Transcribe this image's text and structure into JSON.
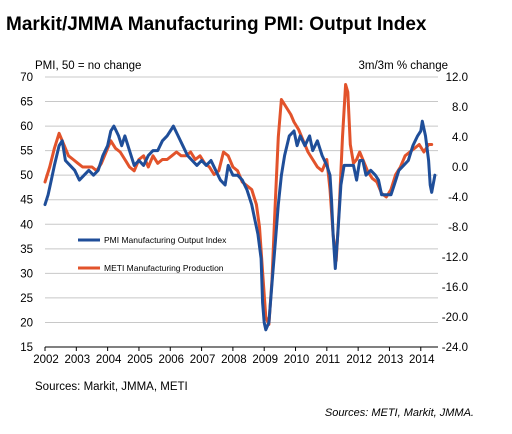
{
  "header": {
    "title": "Markit/JMMA Manufacturing PMI: Output Index",
    "left_axis_note": "PMI, 50 = no change",
    "right_axis_note": "3m/3m % change"
  },
  "sources": {
    "in_chart": "Sources: Markit, JMMA, METI",
    "footer": "Sources: METI, Markit, JMMA."
  },
  "colors": {
    "pmi": "#1f4e99",
    "meti": "#e2532b",
    "grid": "#c8c8c8"
  },
  "chart_data": {
    "type": "line",
    "grid": true,
    "legend_position": "lower-left",
    "x_range": [
      2002.0,
      2014.55
    ],
    "x_ticks": [
      "2002",
      "2003",
      "2004",
      "2005",
      "2006",
      "2007",
      "2008",
      "2009",
      "2010",
      "2011",
      "2012",
      "2013",
      "2014"
    ],
    "y_left": {
      "range": [
        15,
        70
      ],
      "ticks": [
        "15",
        "20",
        "25",
        "30",
        "35",
        "40",
        "45",
        "50",
        "55",
        "60",
        "65",
        "70"
      ]
    },
    "y_right": {
      "range": [
        -24,
        12
      ],
      "ticks": [
        "-24.0",
        "-20.0",
        "-16.0",
        "-12.0",
        "-8.0",
        "-4.0",
        "0.0",
        "4.0",
        "8.0",
        "12.0"
      ]
    },
    "series": [
      {
        "name": "PMI Manufacturing Output Index",
        "axis": "left",
        "points": [
          [
            2002.0,
            44
          ],
          [
            2002.1,
            46
          ],
          [
            2002.2,
            49
          ],
          [
            2002.3,
            52
          ],
          [
            2002.45,
            56
          ],
          [
            2002.55,
            57
          ],
          [
            2002.65,
            53
          ],
          [
            2002.8,
            52
          ],
          [
            2002.95,
            51
          ],
          [
            2003.1,
            49
          ],
          [
            2003.25,
            50
          ],
          [
            2003.4,
            51
          ],
          [
            2003.55,
            50
          ],
          [
            2003.7,
            51
          ],
          [
            2003.85,
            54
          ],
          [
            2004.0,
            56
          ],
          [
            2004.1,
            59
          ],
          [
            2004.2,
            60
          ],
          [
            2004.35,
            58
          ],
          [
            2004.45,
            56
          ],
          [
            2004.55,
            58
          ],
          [
            2004.7,
            55
          ],
          [
            2004.85,
            52
          ],
          [
            2005.0,
            53
          ],
          [
            2005.15,
            52
          ],
          [
            2005.3,
            54
          ],
          [
            2005.45,
            55
          ],
          [
            2005.6,
            55
          ],
          [
            2005.75,
            57
          ],
          [
            2005.9,
            58
          ],
          [
            2006.0,
            59
          ],
          [
            2006.1,
            60
          ],
          [
            2006.25,
            58
          ],
          [
            2006.4,
            56
          ],
          [
            2006.55,
            54
          ],
          [
            2006.7,
            53
          ],
          [
            2006.85,
            52
          ],
          [
            2007.0,
            53
          ],
          [
            2007.15,
            52
          ],
          [
            2007.3,
            53
          ],
          [
            2007.45,
            51
          ],
          [
            2007.6,
            49
          ],
          [
            2007.75,
            48
          ],
          [
            2007.85,
            52
          ],
          [
            2008.0,
            50
          ],
          [
            2008.15,
            50
          ],
          [
            2008.3,
            49
          ],
          [
            2008.45,
            47
          ],
          [
            2008.6,
            44
          ],
          [
            2008.7,
            41
          ],
          [
            2008.8,
            38
          ],
          [
            2008.9,
            33
          ],
          [
            2008.95,
            24
          ],
          [
            2009.0,
            20
          ],
          [
            2009.05,
            18.5
          ],
          [
            2009.15,
            20
          ],
          [
            2009.25,
            28
          ],
          [
            2009.35,
            36
          ],
          [
            2009.45,
            44
          ],
          [
            2009.55,
            50
          ],
          [
            2009.65,
            54
          ],
          [
            2009.8,
            58
          ],
          [
            2009.95,
            59
          ],
          [
            2010.05,
            56
          ],
          [
            2010.15,
            58
          ],
          [
            2010.3,
            56
          ],
          [
            2010.45,
            58
          ],
          [
            2010.55,
            55
          ],
          [
            2010.7,
            57
          ],
          [
            2010.85,
            54
          ],
          [
            2011.0,
            52
          ],
          [
            2011.1,
            50
          ],
          [
            2011.15,
            45
          ],
          [
            2011.2,
            38
          ],
          [
            2011.27,
            31
          ],
          [
            2011.35,
            38
          ],
          [
            2011.45,
            48
          ],
          [
            2011.55,
            52
          ],
          [
            2011.7,
            52
          ],
          [
            2011.85,
            52
          ],
          [
            2011.95,
            49
          ],
          [
            2012.05,
            53
          ],
          [
            2012.15,
            53
          ],
          [
            2012.25,
            50
          ],
          [
            2012.4,
            51
          ],
          [
            2012.55,
            50
          ],
          [
            2012.65,
            49
          ],
          [
            2012.75,
            46
          ],
          [
            2012.85,
            46
          ],
          [
            2012.95,
            46
          ],
          [
            2013.05,
            46
          ],
          [
            2013.15,
            48
          ],
          [
            2013.3,
            51
          ],
          [
            2013.45,
            52
          ],
          [
            2013.6,
            53
          ],
          [
            2013.75,
            56
          ],
          [
            2013.9,
            58
          ],
          [
            2014.0,
            59
          ],
          [
            2014.05,
            61
          ],
          [
            2014.15,
            58
          ],
          [
            2014.25,
            53
          ],
          [
            2014.3,
            48
          ],
          [
            2014.35,
            46.5
          ],
          [
            2014.45,
            50
          ]
        ]
      },
      {
        "name": "METI Manufacturing Production",
        "axis": "right",
        "points": [
          [
            2002.0,
            -2
          ],
          [
            2002.15,
            0
          ],
          [
            2002.3,
            2.5
          ],
          [
            2002.45,
            4.5
          ],
          [
            2002.6,
            3
          ],
          [
            2002.75,
            1.5
          ],
          [
            2002.9,
            1
          ],
          [
            2003.05,
            0.5
          ],
          [
            2003.2,
            0
          ],
          [
            2003.35,
            0
          ],
          [
            2003.5,
            0
          ],
          [
            2003.65,
            -0.5
          ],
          [
            2003.8,
            0.5
          ],
          [
            2003.95,
            2
          ],
          [
            2004.1,
            3.5
          ],
          [
            2004.25,
            2.5
          ],
          [
            2004.4,
            2
          ],
          [
            2004.55,
            1
          ],
          [
            2004.7,
            0
          ],
          [
            2004.85,
            -0.5
          ],
          [
            2005.0,
            1
          ],
          [
            2005.15,
            1.5
          ],
          [
            2005.3,
            0
          ],
          [
            2005.45,
            1.5
          ],
          [
            2005.6,
            0.5
          ],
          [
            2005.75,
            1
          ],
          [
            2005.9,
            1
          ],
          [
            2006.05,
            1.5
          ],
          [
            2006.2,
            2
          ],
          [
            2006.35,
            1.5
          ],
          [
            2006.5,
            1.5
          ],
          [
            2006.65,
            2
          ],
          [
            2006.8,
            1
          ],
          [
            2006.95,
            1.5
          ],
          [
            2007.1,
            0.5
          ],
          [
            2007.25,
            0
          ],
          [
            2007.4,
            -1
          ],
          [
            2007.55,
            -0.5
          ],
          [
            2007.7,
            2
          ],
          [
            2007.85,
            1.5
          ],
          [
            2008.0,
            0
          ],
          [
            2008.15,
            -0.5
          ],
          [
            2008.3,
            -2
          ],
          [
            2008.45,
            -2.5
          ],
          [
            2008.6,
            -3
          ],
          [
            2008.75,
            -5
          ],
          [
            2008.85,
            -8
          ],
          [
            2008.95,
            -14
          ],
          [
            2009.05,
            -20
          ],
          [
            2009.15,
            -21
          ],
          [
            2009.25,
            -15
          ],
          [
            2009.35,
            -5
          ],
          [
            2009.45,
            4
          ],
          [
            2009.55,
            9
          ],
          [
            2009.7,
            8
          ],
          [
            2009.85,
            7
          ],
          [
            2009.95,
            6
          ],
          [
            2010.1,
            5
          ],
          [
            2010.25,
            3.5
          ],
          [
            2010.4,
            2
          ],
          [
            2010.55,
            1
          ],
          [
            2010.7,
            0
          ],
          [
            2010.85,
            -0.5
          ],
          [
            2011.0,
            1
          ],
          [
            2011.1,
            -3
          ],
          [
            2011.2,
            -9
          ],
          [
            2011.3,
            -12.5
          ],
          [
            2011.4,
            -5
          ],
          [
            2011.5,
            4
          ],
          [
            2011.6,
            11
          ],
          [
            2011.67,
            10
          ],
          [
            2011.75,
            3
          ],
          [
            2011.85,
            0.5
          ],
          [
            2011.95,
            1
          ],
          [
            2012.05,
            2
          ],
          [
            2012.15,
            1
          ],
          [
            2012.3,
            -0.5
          ],
          [
            2012.45,
            -1.5
          ],
          [
            2012.6,
            -2
          ],
          [
            2012.75,
            -3.5
          ],
          [
            2012.9,
            -4
          ],
          [
            2013.05,
            -3
          ],
          [
            2013.2,
            -1
          ],
          [
            2013.35,
            0
          ],
          [
            2013.5,
            1.5
          ],
          [
            2013.65,
            2
          ],
          [
            2013.8,
            2.5
          ],
          [
            2013.95,
            3
          ],
          [
            2014.1,
            2
          ],
          [
            2014.25,
            3
          ],
          [
            2014.35,
            3
          ]
        ]
      }
    ]
  }
}
